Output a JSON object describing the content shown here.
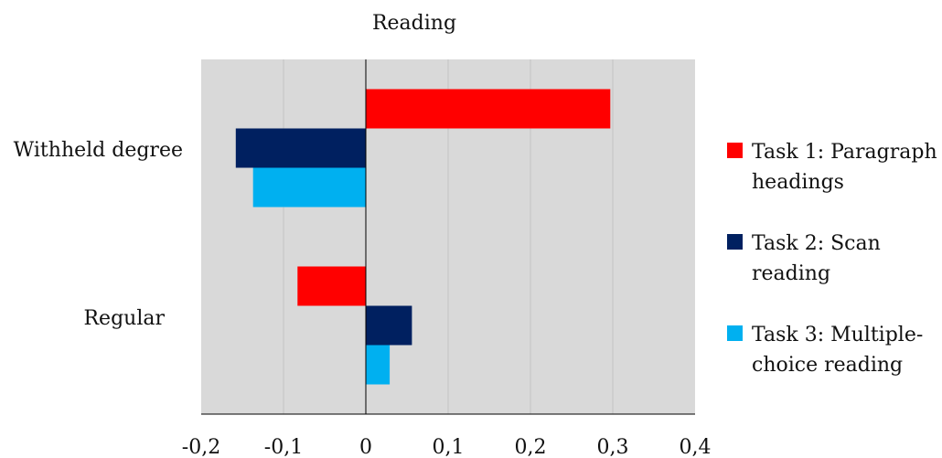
{
  "chart_data": {
    "type": "bar",
    "orientation": "horizontal",
    "title": "Reading",
    "categories": [
      "Withheld degree",
      "Regular"
    ],
    "series": [
      {
        "name": "Task 1: Paragraph headings",
        "color": "#ff0000",
        "values": [
          0.297,
          -0.083
        ]
      },
      {
        "name": "Task 2: Scan reading",
        "color": "#002060",
        "values": [
          -0.158,
          0.056
        ]
      },
      {
        "name": "Task 3: Multiple-choice reading",
        "color": "#00b0f0",
        "values": [
          -0.137,
          0.029
        ]
      }
    ],
    "xlim": [
      -0.2,
      0.4
    ],
    "xticks": [
      "-0,2",
      "-0,1",
      "0",
      "0,1",
      "0,2",
      "0,3",
      "0,4"
    ],
    "legend_position": "right",
    "grid": true,
    "plot_background": "#d9d9d9"
  },
  "legend": {
    "items": [
      {
        "label_line1": "Task 1: Paragraph",
        "label_line2": "headings"
      },
      {
        "label_line1": "Task 2: Scan",
        "label_line2": "reading"
      },
      {
        "label_line1": "Task 3: Multiple-",
        "label_line2": "choice reading"
      }
    ]
  }
}
